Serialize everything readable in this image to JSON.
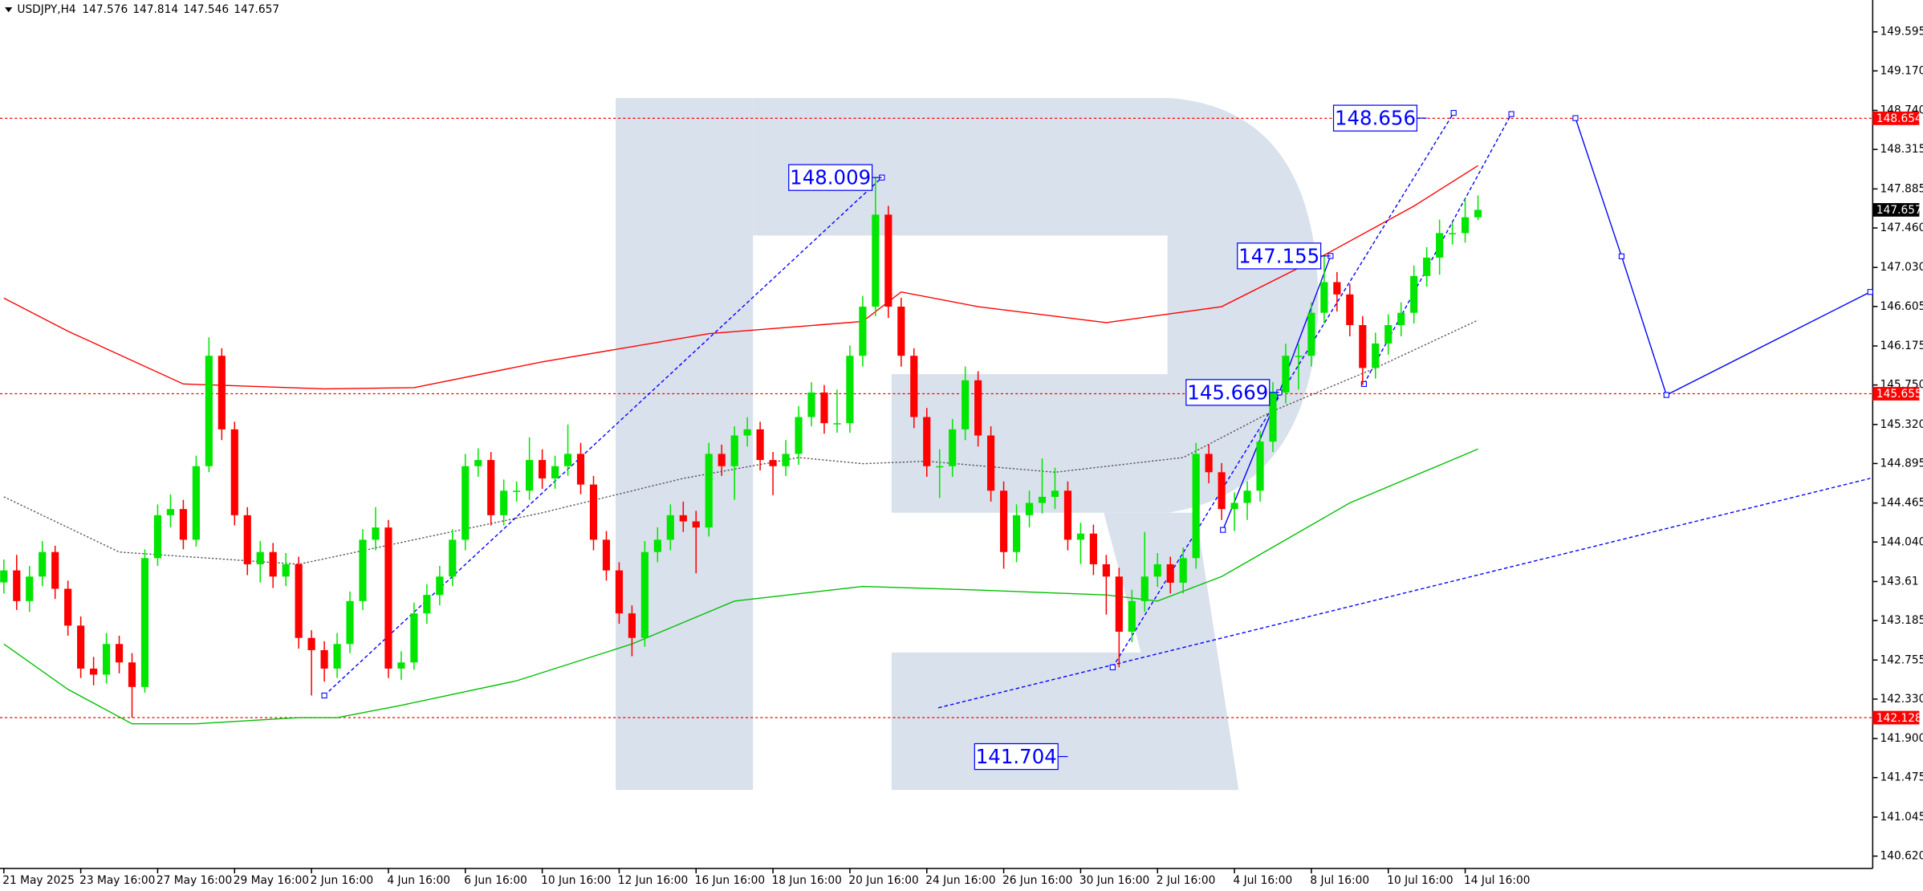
{
  "chart_data": {
    "type": "candlestick",
    "title": "USDJPY,H4",
    "header_values": [
      147.576,
      147.814,
      147.546,
      147.657
    ],
    "up_color": "#00e600",
    "down_color": "#ff0000",
    "xlim": [
      -0.3,
      145.6
    ],
    "ylim": [
      140.486,
      149.942
    ],
    "yticks": [
      149.595,
      {
        "value": 149.17,
        "label": "149.170"
      },
      {
        "value": 148.74,
        "label": "148.740"
      },
      148.315,
      147.885,
      {
        "value": 147.46,
        "label": "147.460"
      },
      {
        "value": 147.03,
        "label": "147.030"
      },
      146.605,
      146.175,
      {
        "value": 145.75,
        "label": "145.750"
      },
      {
        "value": 145.32,
        "label": "145.320"
      },
      144.895,
      144.465,
      {
        "value": 144.04,
        "label": "144.040"
      },
      143.61,
      143.185,
      142.755,
      {
        "value": 142.33,
        "label": "142.330"
      },
      {
        "value": 141.9,
        "label": "141.900"
      },
      141.475,
      141.045,
      {
        "value": 140.62,
        "label": "140.620"
      }
    ],
    "categories": [
      "21 May 2025",
      null,
      null,
      null,
      null,
      null,
      "23 May 16:00",
      null,
      null,
      null,
      null,
      null,
      "27 May 16:00",
      null,
      null,
      null,
      null,
      null,
      "29 May 16:00",
      null,
      null,
      null,
      null,
      null,
      "2 Jun 16:00",
      null,
      null,
      null,
      null,
      null,
      "4 Jun 16:00",
      null,
      null,
      null,
      null,
      null,
      "6 Jun 16:00",
      null,
      null,
      null,
      null,
      null,
      "10 Jun 16:00",
      null,
      null,
      null,
      null,
      null,
      "12 Jun 16:00",
      null,
      null,
      null,
      null,
      null,
      "16 Jun 16:00",
      null,
      null,
      null,
      null,
      null,
      "18 Jun 16:00",
      null,
      null,
      null,
      null,
      null,
      "20 Jun 16:00",
      null,
      null,
      null,
      null,
      null,
      "24 Jun 16:00",
      null,
      null,
      null,
      null,
      null,
      "26 Jun 16:00",
      null,
      null,
      null,
      null,
      null,
      "30 Jun 16:00",
      null,
      null,
      null,
      null,
      null,
      "2 Jul 16:00",
      null,
      null,
      null,
      null,
      null,
      "4 Jul 16:00",
      null,
      null,
      null,
      null,
      null,
      "8 Jul 16:00",
      null,
      null,
      null,
      null,
      null,
      "10 Jul 16:00",
      null,
      null,
      null,
      null,
      null,
      "14 Jul 16:00",
      null
    ],
    "ohlc": [
      [
        143.6,
        143.85,
        143.48,
        143.731
      ],
      [
        143.731,
        143.9,
        143.3,
        143.397
      ],
      [
        143.397,
        143.78,
        143.28,
        143.664
      ],
      [
        143.664,
        144.05,
        143.56,
        143.931
      ],
      [
        143.931,
        144.0,
        143.42,
        143.531
      ],
      [
        143.531,
        143.62,
        143.02,
        143.13
      ],
      [
        143.13,
        143.23,
        142.56,
        142.662
      ],
      [
        142.662,
        142.79,
        142.48,
        142.596
      ],
      [
        142.596,
        143.05,
        142.5,
        142.93
      ],
      [
        142.93,
        143.02,
        142.61,
        142.729
      ],
      [
        142.729,
        142.83,
        142.128,
        142.462
      ],
      [
        142.462,
        143.96,
        142.4,
        143.865
      ],
      [
        143.865,
        144.45,
        143.78,
        144.332
      ],
      [
        144.332,
        144.56,
        144.2,
        144.399
      ],
      [
        144.399,
        144.5,
        143.96,
        144.065
      ],
      [
        144.065,
        144.98,
        143.99,
        144.866
      ],
      [
        144.866,
        146.269,
        144.8,
        146.068
      ],
      [
        146.068,
        146.15,
        145.15,
        145.267
      ],
      [
        145.267,
        145.35,
        144.22,
        144.332
      ],
      [
        144.332,
        144.42,
        143.68,
        143.798
      ],
      [
        143.798,
        144.05,
        143.6,
        143.931
      ],
      [
        143.931,
        144.03,
        143.54,
        143.664
      ],
      [
        143.664,
        143.92,
        143.56,
        143.798
      ],
      [
        143.798,
        143.88,
        142.88,
        142.996
      ],
      [
        142.996,
        143.08,
        142.369,
        142.863
      ],
      [
        142.863,
        142.96,
        142.52,
        142.662
      ],
      [
        142.662,
        143.05,
        142.56,
        142.93
      ],
      [
        142.93,
        143.5,
        142.83,
        143.397
      ],
      [
        143.397,
        144.18,
        143.3,
        144.065
      ],
      [
        144.065,
        144.42,
        143.95,
        144.198
      ],
      [
        144.198,
        144.28,
        142.56,
        142.662
      ],
      [
        142.662,
        142.85,
        142.54,
        142.729
      ],
      [
        142.729,
        143.38,
        142.65,
        143.263
      ],
      [
        143.263,
        143.58,
        143.15,
        143.464
      ],
      [
        143.464,
        143.78,
        143.35,
        143.664
      ],
      [
        143.664,
        144.18,
        143.56,
        144.065
      ],
      [
        144.065,
        145.0,
        143.95,
        144.866
      ],
      [
        144.866,
        145.06,
        144.75,
        144.933
      ],
      [
        144.933,
        145.02,
        144.22,
        144.332
      ],
      [
        144.332,
        144.72,
        144.22,
        144.599
      ],
      [
        144.599,
        144.7,
        144.48,
        144.599
      ],
      [
        144.599,
        145.18,
        144.5,
        144.933
      ],
      [
        144.933,
        145.05,
        144.62,
        144.733
      ],
      [
        144.733,
        144.98,
        144.62,
        144.866
      ],
      [
        144.866,
        145.32,
        144.76,
        145.0
      ],
      [
        145.0,
        145.12,
        144.56,
        144.666
      ],
      [
        144.666,
        144.76,
        143.95,
        144.065
      ],
      [
        144.065,
        144.16,
        143.62,
        143.731
      ],
      [
        143.731,
        143.82,
        143.15,
        143.263
      ],
      [
        143.263,
        143.35,
        142.796,
        142.996
      ],
      [
        142.996,
        144.05,
        142.9,
        143.931
      ],
      [
        143.931,
        144.2,
        143.82,
        144.065
      ],
      [
        144.065,
        144.45,
        143.95,
        144.332
      ],
      [
        144.332,
        144.48,
        144.15,
        144.265
      ],
      [
        144.265,
        144.38,
        143.7,
        144.198
      ],
      [
        144.198,
        145.12,
        144.1,
        145.0
      ],
      [
        145.0,
        145.1,
        144.76,
        144.866
      ],
      [
        144.866,
        145.3,
        144.5,
        145.2
      ],
      [
        145.2,
        145.4,
        145.08,
        145.267
      ],
      [
        145.267,
        145.35,
        144.82,
        144.933
      ],
      [
        144.933,
        145.02,
        144.55,
        144.866
      ],
      [
        144.866,
        145.15,
        144.76,
        145.0
      ],
      [
        145.0,
        145.52,
        144.88,
        145.401
      ],
      [
        145.401,
        145.78,
        145.3,
        145.668
      ],
      [
        145.668,
        145.75,
        145.22,
        145.334
      ],
      [
        145.334,
        145.7,
        145.23,
        145.334
      ],
      [
        145.334,
        146.18,
        145.23,
        146.068
      ],
      [
        146.068,
        146.72,
        145.95,
        146.603
      ],
      [
        146.603,
        148.009,
        146.5,
        147.605
      ],
      [
        147.605,
        147.7,
        146.48,
        146.603
      ],
      [
        146.603,
        146.7,
        145.95,
        146.068
      ],
      [
        146.068,
        146.15,
        145.28,
        145.401
      ],
      [
        145.401,
        145.5,
        144.75,
        144.866
      ],
      [
        144.866,
        145.05,
        144.52,
        144.866
      ],
      [
        144.866,
        145.38,
        144.75,
        145.267
      ],
      [
        145.267,
        145.95,
        145.15,
        145.801
      ],
      [
        145.801,
        145.9,
        145.08,
        145.2
      ],
      [
        145.2,
        145.3,
        144.48,
        144.599
      ],
      [
        144.599,
        144.7,
        143.75,
        143.931
      ],
      [
        143.931,
        144.45,
        143.82,
        144.332
      ],
      [
        144.332,
        144.6,
        144.2,
        144.466
      ],
      [
        144.466,
        144.95,
        144.35,
        144.532
      ],
      [
        144.532,
        144.85,
        144.4,
        144.599
      ],
      [
        144.599,
        144.7,
        143.95,
        144.065
      ],
      [
        144.065,
        144.25,
        143.8,
        144.132
      ],
      [
        144.132,
        144.23,
        143.68,
        143.798
      ],
      [
        143.798,
        143.9,
        143.25,
        143.664
      ],
      [
        143.664,
        143.76,
        142.676,
        143.063
      ],
      [
        143.063,
        143.52,
        142.95,
        143.397
      ],
      [
        143.397,
        144.15,
        143.28,
        143.664
      ],
      [
        143.664,
        143.92,
        143.55,
        143.798
      ],
      [
        143.798,
        143.88,
        143.48,
        143.597
      ],
      [
        143.597,
        143.98,
        143.48,
        143.865
      ],
      [
        143.865,
        145.12,
        143.75,
        145.0
      ],
      [
        145.0,
        145.1,
        144.68,
        144.8
      ],
      [
        144.8,
        144.9,
        144.28,
        144.399
      ],
      [
        144.399,
        144.58,
        144.16,
        144.466
      ],
      [
        144.466,
        144.7,
        144.28,
        144.599
      ],
      [
        144.599,
        145.25,
        144.48,
        145.133
      ],
      [
        145.133,
        145.78,
        145.02,
        145.668
      ],
      [
        145.668,
        146.2,
        145.55,
        146.068
      ],
      [
        146.068,
        146.2,
        145.7,
        146.068
      ],
      [
        146.068,
        146.65,
        145.95,
        146.536
      ],
      [
        146.536,
        147.155,
        146.42,
        146.87
      ],
      [
        146.87,
        146.98,
        146.55,
        146.736
      ],
      [
        146.736,
        146.85,
        146.28,
        146.402
      ],
      [
        146.402,
        146.5,
        145.75,
        145.935
      ],
      [
        145.935,
        146.32,
        145.82,
        146.202
      ],
      [
        146.202,
        146.52,
        146.08,
        146.402
      ],
      [
        146.402,
        146.65,
        146.28,
        146.536
      ],
      [
        146.536,
        147.05,
        146.42,
        146.937
      ],
      [
        146.937,
        147.25,
        146.82,
        147.137
      ],
      [
        147.137,
        147.55,
        146.95,
        147.404
      ],
      [
        147.404,
        147.52,
        147.28,
        147.404
      ],
      [
        147.404,
        147.78,
        147.3,
        147.576
      ],
      [
        147.576,
        147.814,
        147.546,
        147.657
      ]
    ],
    "lines": [
      {
        "color": "#ff0000",
        "style": "solid",
        "markers": false,
        "x": [
          0,
          5,
          14,
          25,
          32,
          42,
          55,
          67,
          70,
          76,
          86,
          95,
          103,
          110,
          115
        ],
        "values": [
          146.696,
          146.336,
          145.761,
          145.708,
          145.721,
          146.002,
          146.309,
          146.442,
          146.763,
          146.603,
          146.429,
          146.603,
          147.164,
          147.698,
          148.139
        ]
      },
      {
        "color": "#555555",
        "style": "dotted",
        "markers": false,
        "x": [
          0,
          9,
          23,
          32,
          42,
          53,
          62,
          67,
          72,
          82,
          92,
          99,
          107,
          115
        ],
        "values": [
          144.532,
          143.931,
          143.798,
          144.065,
          144.359,
          144.733,
          144.96,
          144.893,
          144.92,
          144.8,
          144.96,
          145.467,
          145.935,
          146.456
        ]
      },
      {
        "color": "#00c000",
        "style": "solid",
        "markers": false,
        "x": [
          0,
          5,
          10,
          15,
          23,
          26,
          31,
          40,
          49,
          57,
          67,
          76,
          86,
          90,
          95,
          105,
          115
        ],
        "values": [
          142.93,
          142.436,
          142.061,
          142.061,
          142.128,
          142.128,
          142.262,
          142.529,
          142.93,
          143.397,
          143.557,
          143.517,
          143.464,
          143.397,
          143.664,
          144.466,
          145.053
        ]
      },
      {
        "color": "#0000ff",
        "style": "dashed",
        "markers": true,
        "x": [
          25,
          68.5
        ],
        "values": [
          142.369,
          148.009
        ]
      },
      {
        "color": "#0000ff",
        "style": "dashed",
        "markers": false,
        "x": [
          72.9,
          145.6
        ],
        "values": [
          142.235,
          144.733
        ]
      },
      {
        "color": "#0000ff",
        "style": "dashed",
        "markers": true,
        "x": [
          86.5,
          113.1
        ],
        "values": [
          142.676,
          148.713
        ]
      },
      {
        "color": "#0000ff",
        "style": "dashed",
        "markers": true,
        "x": [
          106.1,
          117.6
        ],
        "values": [
          145.761,
          148.7
        ]
      },
      {
        "color": "#0000ff",
        "style": "solid",
        "markers": true,
        "x": [
          95.1,
          99.5,
          103.5
        ],
        "values": [
          144.172,
          145.669,
          147.155
        ]
      },
      {
        "color": "#0000ff",
        "style": "solid",
        "markers": true,
        "x": [
          122.6,
          126.2,
          129.7,
          145.6
        ],
        "values": [
          148.656,
          147.151,
          145.641,
          146.763
        ]
      }
    ],
    "annotations": [
      {
        "x": 68.5,
        "value": 148.009,
        "color": "#0000ff"
      },
      {
        "x": 103.5,
        "value": 147.155,
        "color": "#0000ff"
      },
      {
        "x": 99.5,
        "value": 145.669,
        "color": "#0000ff"
      },
      {
        "x": 83,
        "value": 141.704,
        "color": "#0000ff"
      },
      {
        "x": 111,
        "value": 148.656,
        "color": "#0000ff"
      }
    ],
    "price_levels": [
      {
        "value": 148.654,
        "color": "#ff0000",
        "line": true
      },
      {
        "value": 147.657,
        "color": "#000000",
        "line": false
      },
      {
        "value": 145.655,
        "color": "#ff0000",
        "line": true
      },
      {
        "value": 142.128,
        "color": "#ff0000",
        "line": true
      }
    ]
  }
}
